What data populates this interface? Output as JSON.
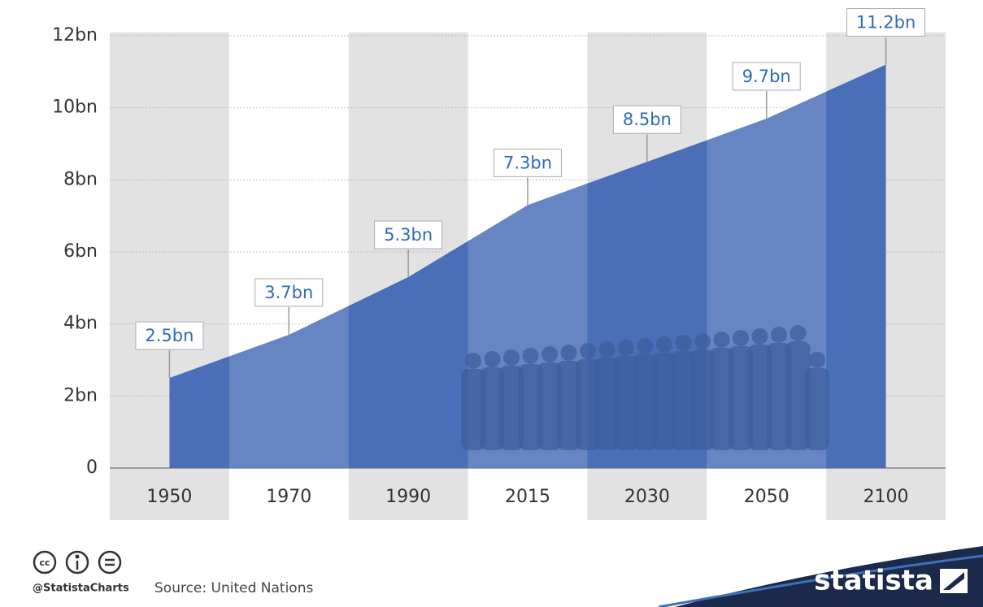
{
  "chart_data": {
    "type": "area",
    "categories": [
      "1950",
      "1970",
      "1990",
      "2015",
      "2030",
      "2050",
      "2100"
    ],
    "values": [
      2.5,
      3.7,
      5.3,
      7.3,
      8.5,
      9.7,
      11.2
    ],
    "value_labels": [
      "2.5bn",
      "3.7bn",
      "5.3bn",
      "7.3bn",
      "8.5bn",
      "9.7bn",
      "11.2bn"
    ],
    "color": "#4a6eb7",
    "ylim": [
      0,
      12
    ],
    "yticks": [
      0,
      {
        "value": 2,
        "label": "2bn"
      },
      {
        "value": 4,
        "label": "4bn"
      },
      {
        "value": 6,
        "label": "6bn"
      },
      {
        "value": 8,
        "label": "8bn"
      },
      {
        "value": 10,
        "label": "10bn"
      },
      {
        "value": 12,
        "label": "12bn"
      }
    ],
    "grid": true,
    "credit": "@StatistaCharts",
    "source": "Source: United Nations",
    "brand": "statista"
  }
}
